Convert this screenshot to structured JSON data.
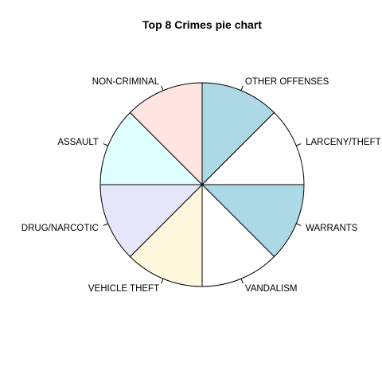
{
  "chart_data": {
    "type": "pie",
    "title": "Top 8 Crimes pie chart",
    "start_angle_deg": 90,
    "direction": "clockwise",
    "slices": [
      {
        "label": "OTHER OFFENSES",
        "value": 1,
        "color": "#add8e6"
      },
      {
        "label": "LARCENY/THEFT",
        "value": 1,
        "color": "#ffffff"
      },
      {
        "label": "WARRANTS",
        "value": 1,
        "color": "#add8e6"
      },
      {
        "label": "VANDALISM",
        "value": 1,
        "color": "#ffffff"
      },
      {
        "label": "VEHICLE THEFT",
        "value": 1,
        "color": "#fff8dc"
      },
      {
        "label": "DRUG/NARCOTIC",
        "value": 1,
        "color": "#e6e6fa"
      },
      {
        "label": "ASSAULT",
        "value": 1,
        "color": "#e0ffff"
      },
      {
        "label": "NON-CRIMINAL",
        "value": 1,
        "color": "#ffe4e1"
      }
    ]
  }
}
